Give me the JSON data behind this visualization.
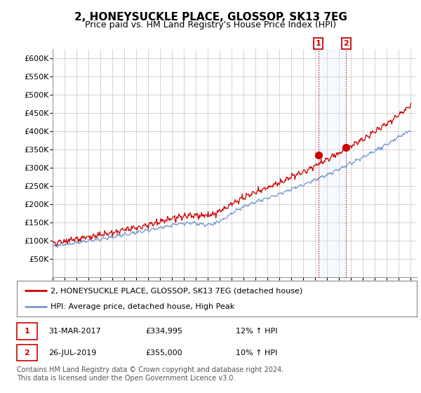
{
  "title": "2, HONEYSUCKLE PLACE, GLOSSOP, SK13 7EG",
  "subtitle": "Price paid vs. HM Land Registry's House Price Index (HPI)",
  "ylim": [
    0,
    625000
  ],
  "yticks": [
    50000,
    100000,
    150000,
    200000,
    250000,
    300000,
    350000,
    400000,
    450000,
    500000,
    550000,
    600000
  ],
  "x_start_year": 1995,
  "x_end_year": 2025,
  "hpi_color": "#7799cc",
  "price_color": "#cc0000",
  "background_color": "#ffffff",
  "grid_color": "#cccccc",
  "shade_color": "#ddeeff",
  "legend_label_price": "2, HONEYSUCKLE PLACE, GLOSSOP, SK13 7EG (detached house)",
  "legend_label_hpi": "HPI: Average price, detached house, High Peak",
  "annotation1_label": "1",
  "annotation1_date": "31-MAR-2017",
  "annotation1_price": "£334,995",
  "annotation1_hpi": "12% ↑ HPI",
  "annotation1_year": 2017.25,
  "annotation1_value": 334995,
  "annotation2_label": "2",
  "annotation2_date": "26-JUL-2019",
  "annotation2_price": "£355,000",
  "annotation2_hpi": "10% ↑ HPI",
  "annotation2_year": 2019.58,
  "annotation2_value": 355000,
  "footer": "Contains HM Land Registry data © Crown copyright and database right 2024.\nThis data is licensed under the Open Government Licence v3.0.",
  "title_fontsize": 11,
  "subtitle_fontsize": 9,
  "tick_fontsize": 8,
  "legend_fontsize": 8,
  "footer_fontsize": 7
}
